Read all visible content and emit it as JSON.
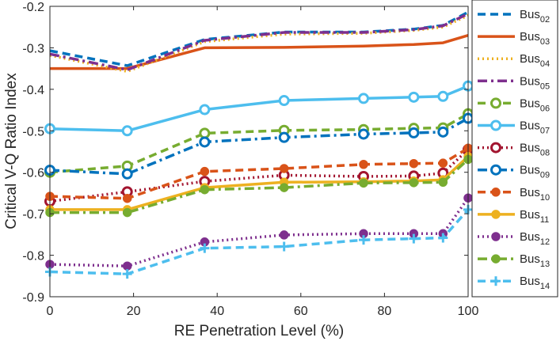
{
  "chart_data": {
    "type": "line",
    "title": "",
    "xlabel": "RE Penetration Level (%)",
    "ylabel": "Critical V-Q Ratio Index",
    "xlim": [
      0,
      100
    ],
    "ylim": [
      -0.9,
      -0.2
    ],
    "xticks": [
      0,
      20,
      40,
      60,
      80,
      100
    ],
    "yticks": [
      -0.2,
      -0.3,
      -0.4,
      -0.5,
      -0.6,
      -0.7,
      -0.8,
      -0.9
    ],
    "xtick_labels": [
      "0",
      "20",
      "40",
      "60",
      "80",
      "100"
    ],
    "ytick_labels": [
      "-0.2",
      "-0.3",
      "-0.4",
      "-0.5",
      "-0.6",
      "-0.7",
      "-0.8",
      "-0.9"
    ],
    "grid": false,
    "legend_position": "outside-right",
    "x": [
      0,
      18.5,
      37,
      56,
      75,
      87,
      94,
      100
    ],
    "series": [
      {
        "name": "Bus",
        "sub": "02",
        "color": "#0072BD",
        "dash": "dash",
        "marker": "none",
        "values": [
          -0.307,
          -0.343,
          -0.28,
          -0.262,
          -0.262,
          -0.255,
          -0.246,
          -0.214
        ]
      },
      {
        "name": "Bus",
        "sub": "03",
        "color": "#D95319",
        "dash": "solid",
        "marker": "none",
        "values": [
          -0.35,
          -0.35,
          -0.3,
          -0.299,
          -0.296,
          -0.292,
          -0.288,
          -0.27
        ]
      },
      {
        "name": "Bus",
        "sub": "04",
        "color": "#EDB120",
        "dash": "dot",
        "marker": "none",
        "values": [
          -0.318,
          -0.357,
          -0.285,
          -0.267,
          -0.265,
          -0.258,
          -0.25,
          -0.222
        ]
      },
      {
        "name": "Bus",
        "sub": "05",
        "color": "#7E2F8E",
        "dash": "dashdot",
        "marker": "none",
        "values": [
          -0.315,
          -0.353,
          -0.282,
          -0.263,
          -0.263,
          -0.256,
          -0.247,
          -0.218
        ]
      },
      {
        "name": "Bus",
        "sub": "06",
        "color": "#77AC30",
        "dash": "dash",
        "marker": "open-circle",
        "values": [
          -0.6,
          -0.585,
          -0.506,
          -0.499,
          -0.497,
          -0.494,
          -0.493,
          -0.459
        ]
      },
      {
        "name": "Bus",
        "sub": "07",
        "color": "#4DBEEE",
        "dash": "solid",
        "marker": "open-circle",
        "values": [
          -0.495,
          -0.5,
          -0.449,
          -0.427,
          -0.422,
          -0.419,
          -0.417,
          -0.392
        ]
      },
      {
        "name": "Bus",
        "sub": "08",
        "color": "#A2142F",
        "dash": "dot",
        "marker": "open-circle",
        "values": [
          -0.67,
          -0.647,
          -0.622,
          -0.607,
          -0.61,
          -0.609,
          -0.602,
          -0.545
        ]
      },
      {
        "name": "Bus",
        "sub": "09",
        "color": "#0072BD",
        "dash": "dashdot",
        "marker": "open-circle",
        "values": [
          -0.595,
          -0.604,
          -0.527,
          -0.516,
          -0.508,
          -0.505,
          -0.503,
          -0.47
        ]
      },
      {
        "name": "Bus",
        "sub": "10",
        "color": "#D95319",
        "dash": "dash",
        "marker": "filled-circle",
        "values": [
          -0.658,
          -0.663,
          -0.598,
          -0.591,
          -0.581,
          -0.579,
          -0.578,
          -0.542
        ]
      },
      {
        "name": "Bus",
        "sub": "11",
        "color": "#EDB120",
        "dash": "solid",
        "marker": "filled-circle",
        "values": [
          -0.69,
          -0.69,
          -0.637,
          -0.624,
          -0.623,
          -0.621,
          -0.618,
          -0.562
        ]
      },
      {
        "name": "Bus",
        "sub": "12",
        "color": "#7E2F8E",
        "dash": "dot",
        "marker": "filled-circle",
        "values": [
          -0.822,
          -0.826,
          -0.768,
          -0.751,
          -0.748,
          -0.748,
          -0.748,
          -0.662
        ]
      },
      {
        "name": "Bus",
        "sub": "13",
        "color": "#77AC30",
        "dash": "dashdot",
        "marker": "filled-circle",
        "values": [
          -0.697,
          -0.697,
          -0.642,
          -0.637,
          -0.626,
          -0.625,
          -0.624,
          -0.569
        ]
      },
      {
        "name": "Bus",
        "sub": "14",
        "color": "#4DBEEE",
        "dash": "dash",
        "marker": "plus",
        "values": [
          -0.84,
          -0.845,
          -0.783,
          -0.779,
          -0.763,
          -0.76,
          -0.758,
          -0.69
        ]
      }
    ]
  }
}
